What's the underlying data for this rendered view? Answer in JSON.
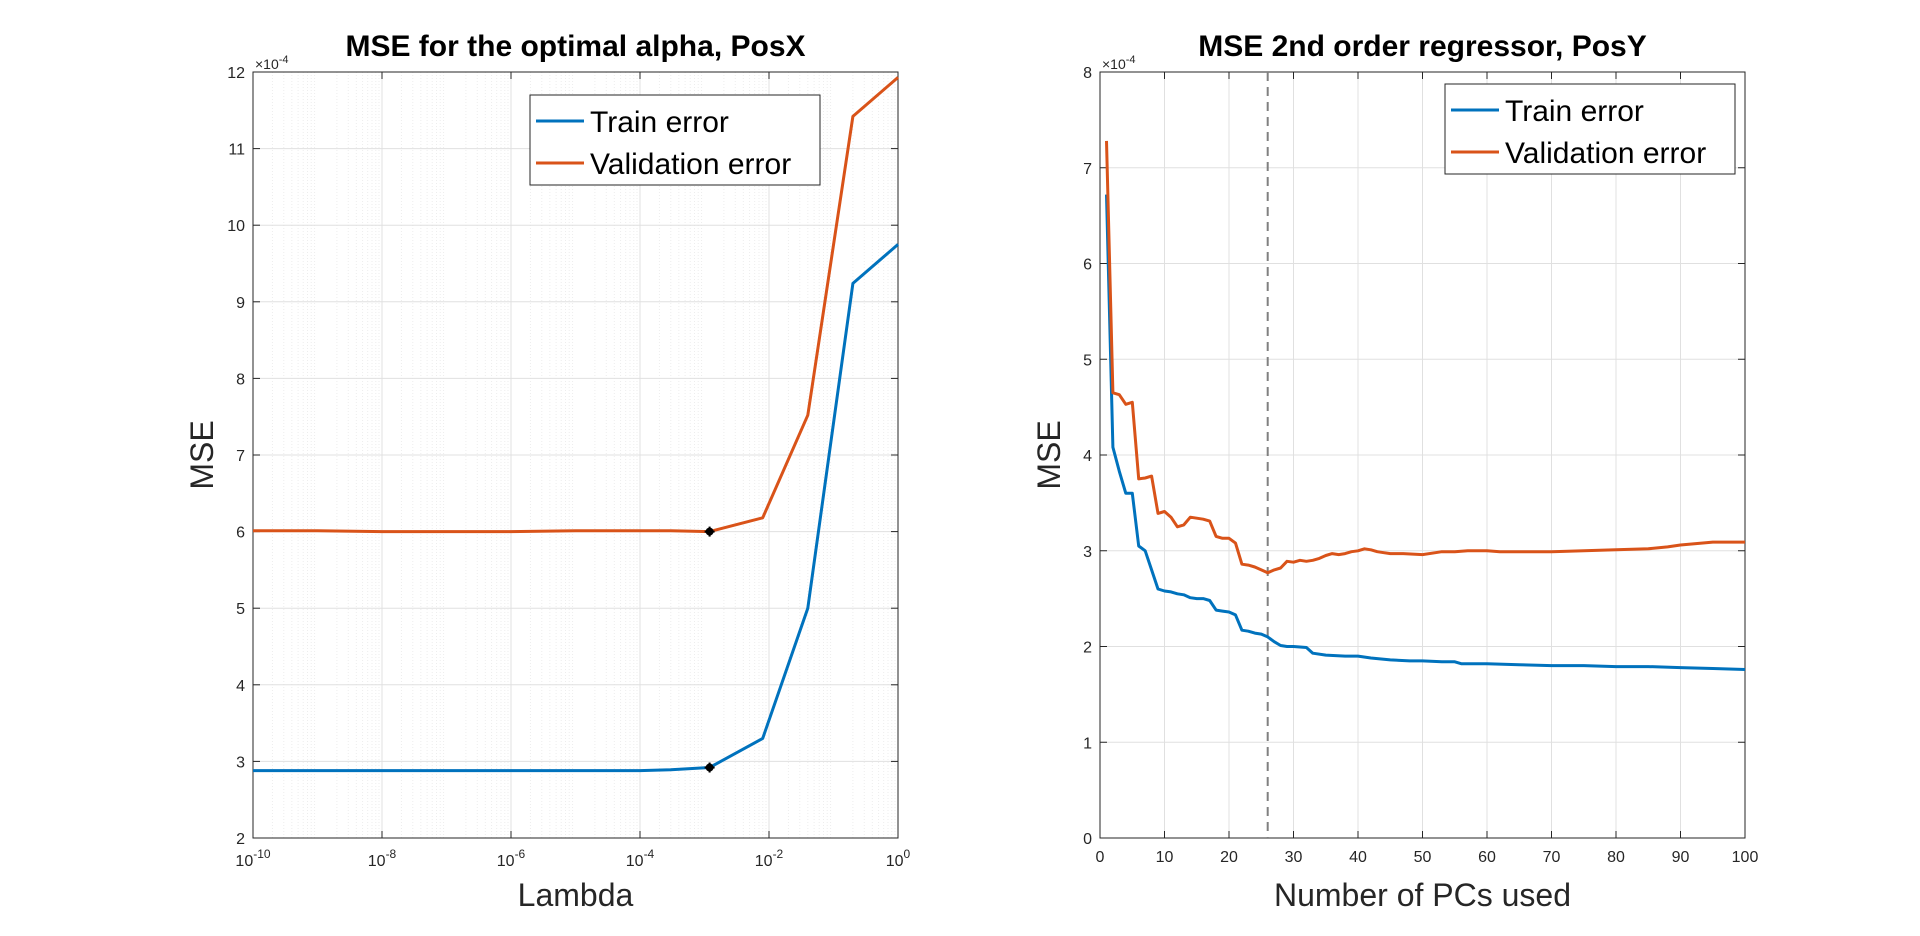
{
  "colors": {
    "train": "#0072BD",
    "validation": "#D95319",
    "grid_major": "#e0e0e0",
    "grid_minor": "#ededed",
    "axis": "#262626",
    "marker": "#000000"
  },
  "chart_data": [
    {
      "type": "line",
      "title": "MSE for the optimal alpha, PosX",
      "xlabel": "Lambda",
      "ylabel": "MSE",
      "xscale": "log",
      "xlim": [
        1e-10,
        1
      ],
      "ylim": [
        2,
        12
      ],
      "y_exponent": "×10",
      "y_exponent_power": "-4",
      "x_tick_values": [
        1e-10,
        1e-08,
        1e-06,
        0.0001,
        0.01,
        1
      ],
      "x_tick_bases": [
        "10",
        "10",
        "10",
        "10",
        "10",
        "10"
      ],
      "x_tick_powers": [
        "-10",
        "-8",
        "-6",
        "-4",
        "-2",
        "0"
      ],
      "y_ticks": [
        2,
        3,
        4,
        5,
        6,
        7,
        8,
        9,
        10,
        11,
        12
      ],
      "y_tick_labels": [
        "2",
        "3",
        "4",
        "5",
        "6",
        "7",
        "8",
        "9",
        "10",
        "11",
        "12"
      ],
      "grid": "major and minor",
      "legend_position": "top-right",
      "x": [
        1e-10,
        1e-09,
        1e-08,
        1e-07,
        1e-06,
        1e-05,
        0.0001,
        0.0003,
        0.0012,
        0.008,
        0.04,
        0.2,
        1
      ],
      "series": [
        {
          "name": "Train error",
          "color": "#0072BD",
          "values": [
            2.88,
            2.88,
            2.88,
            2.88,
            2.88,
            2.88,
            2.88,
            2.89,
            2.92,
            3.3,
            5.0,
            9.24,
            9.75
          ]
        },
        {
          "name": "Validation error",
          "color": "#D95319",
          "values": [
            6.01,
            6.01,
            6.0,
            6.0,
            6.0,
            6.01,
            6.01,
            6.01,
            6.0,
            6.18,
            7.52,
            11.42,
            11.93
          ]
        }
      ],
      "markers": [
        {
          "x": 0.0012,
          "y": 2.92
        },
        {
          "x": 0.0012,
          "y": 6.0
        }
      ]
    },
    {
      "type": "line",
      "title": "MSE 2nd order regressor, PosY",
      "xlabel": "Number of PCs used",
      "ylabel": "MSE",
      "xscale": "linear",
      "xlim": [
        0,
        100
      ],
      "ylim": [
        0,
        8
      ],
      "y_exponent": "×10",
      "y_exponent_power": "-4",
      "x_ticks": [
        0,
        10,
        20,
        30,
        40,
        50,
        60,
        70,
        80,
        90,
        100
      ],
      "x_tick_labels": [
        "0",
        "10",
        "20",
        "30",
        "40",
        "50",
        "60",
        "70",
        "80",
        "90",
        "100"
      ],
      "y_ticks": [
        0,
        1,
        2,
        3,
        4,
        5,
        6,
        7,
        8
      ],
      "y_tick_labels": [
        "0",
        "1",
        "2",
        "3",
        "4",
        "5",
        "6",
        "7",
        "8"
      ],
      "grid": "major",
      "legend_position": "top-right",
      "vertical_line": {
        "x": 26,
        "style": "dashed"
      },
      "series": [
        {
          "name": "Train error",
          "color": "#0072BD",
          "x": [
            1,
            2,
            3,
            4,
            5,
            6,
            7,
            8,
            9,
            10,
            11,
            12,
            13,
            14,
            15,
            16,
            17,
            18,
            19,
            20,
            21,
            22,
            23,
            24,
            25,
            26,
            27,
            28,
            29,
            30,
            32,
            33,
            35,
            38,
            40,
            42,
            45,
            48,
            50,
            53,
            55,
            56,
            60,
            65,
            70,
            75,
            80,
            85,
            90,
            95,
            100
          ],
          "values": [
            6.72,
            4.08,
            3.83,
            3.6,
            3.6,
            3.05,
            3.0,
            2.8,
            2.6,
            2.58,
            2.57,
            2.55,
            2.54,
            2.51,
            2.5,
            2.5,
            2.48,
            2.38,
            2.37,
            2.36,
            2.33,
            2.17,
            2.16,
            2.14,
            2.13,
            2.1,
            2.05,
            2.01,
            2.0,
            2.0,
            1.99,
            1.93,
            1.91,
            1.9,
            1.9,
            1.88,
            1.86,
            1.85,
            1.85,
            1.84,
            1.84,
            1.82,
            1.82,
            1.81,
            1.8,
            1.8,
            1.79,
            1.79,
            1.78,
            1.77,
            1.76
          ]
        },
        {
          "name": "Validation error",
          "color": "#D95319",
          "x": [
            1,
            2,
            3,
            4,
            5,
            6,
            7,
            8,
            9,
            10,
            11,
            12,
            13,
            14,
            15,
            16,
            17,
            18,
            19,
            20,
            21,
            22,
            23,
            24,
            25,
            26,
            27,
            28,
            29,
            30,
            31,
            32,
            33,
            34,
            35,
            36,
            37,
            38,
            39,
            40,
            41,
            42,
            43,
            44,
            45,
            47,
            50,
            52,
            53,
            55,
            57,
            60,
            62,
            65,
            70,
            75,
            80,
            85,
            88,
            90,
            95,
            100
          ],
          "values": [
            7.28,
            4.65,
            4.63,
            4.53,
            4.55,
            3.75,
            3.76,
            3.78,
            3.39,
            3.41,
            3.35,
            3.25,
            3.27,
            3.35,
            3.34,
            3.33,
            3.31,
            3.15,
            3.13,
            3.13,
            3.08,
            2.86,
            2.85,
            2.83,
            2.8,
            2.77,
            2.8,
            2.82,
            2.89,
            2.88,
            2.9,
            2.89,
            2.9,
            2.92,
            2.95,
            2.97,
            2.96,
            2.97,
            2.99,
            3.0,
            3.02,
            3.01,
            2.99,
            2.98,
            2.97,
            2.97,
            2.96,
            2.98,
            2.99,
            2.99,
            3.0,
            3.0,
            2.99,
            2.99,
            2.99,
            3.0,
            3.01,
            3.02,
            3.04,
            3.06,
            3.09,
            3.09
          ]
        }
      ]
    }
  ]
}
